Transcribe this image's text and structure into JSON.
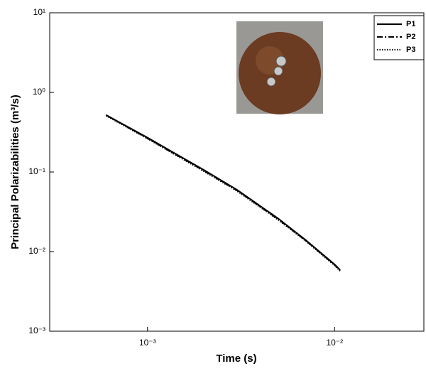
{
  "chart_data": {
    "type": "line",
    "x_label": "Time (s)",
    "y_label": "Principal Polarizabilities (m³/s)",
    "xscale": "log",
    "yscale": "log",
    "xlim": [
      0.0003,
      0.03
    ],
    "ylim": [
      0.001,
      10
    ],
    "xticks": [
      {
        "value": 0.001,
        "label": "10⁻³"
      },
      {
        "value": 0.01,
        "label": "10⁻²"
      }
    ],
    "yticks": [
      {
        "value": 0.001,
        "label": "10⁻³"
      },
      {
        "value": 0.01,
        "label": "10⁻²"
      },
      {
        "value": 0.1,
        "label": "10⁻¹"
      },
      {
        "value": 1,
        "label": "10⁰"
      },
      {
        "value": 10,
        "label": "10¹"
      }
    ],
    "legend": "upper right",
    "x": [
      0.0006,
      0.001,
      0.002,
      0.003,
      0.005,
      0.007,
      0.01,
      0.0107
    ],
    "series": [
      {
        "name": "P1",
        "color": "#000000",
        "dash": "solid",
        "values": [
          0.52,
          0.27,
          0.106,
          0.06,
          0.026,
          0.014,
          0.0069,
          0.0059
        ]
      },
      {
        "name": "P2",
        "color": "#000000",
        "dash": "dashdot",
        "values": [
          0.52,
          0.265,
          0.104,
          0.059,
          0.0255,
          0.0138,
          0.0068,
          0.0058
        ]
      },
      {
        "name": "P3",
        "color": "#000000",
        "dash": "dotted",
        "values": [
          0.51,
          0.262,
          0.102,
          0.058,
          0.025,
          0.0136,
          0.0067,
          0.0057
        ]
      }
    ]
  }
}
